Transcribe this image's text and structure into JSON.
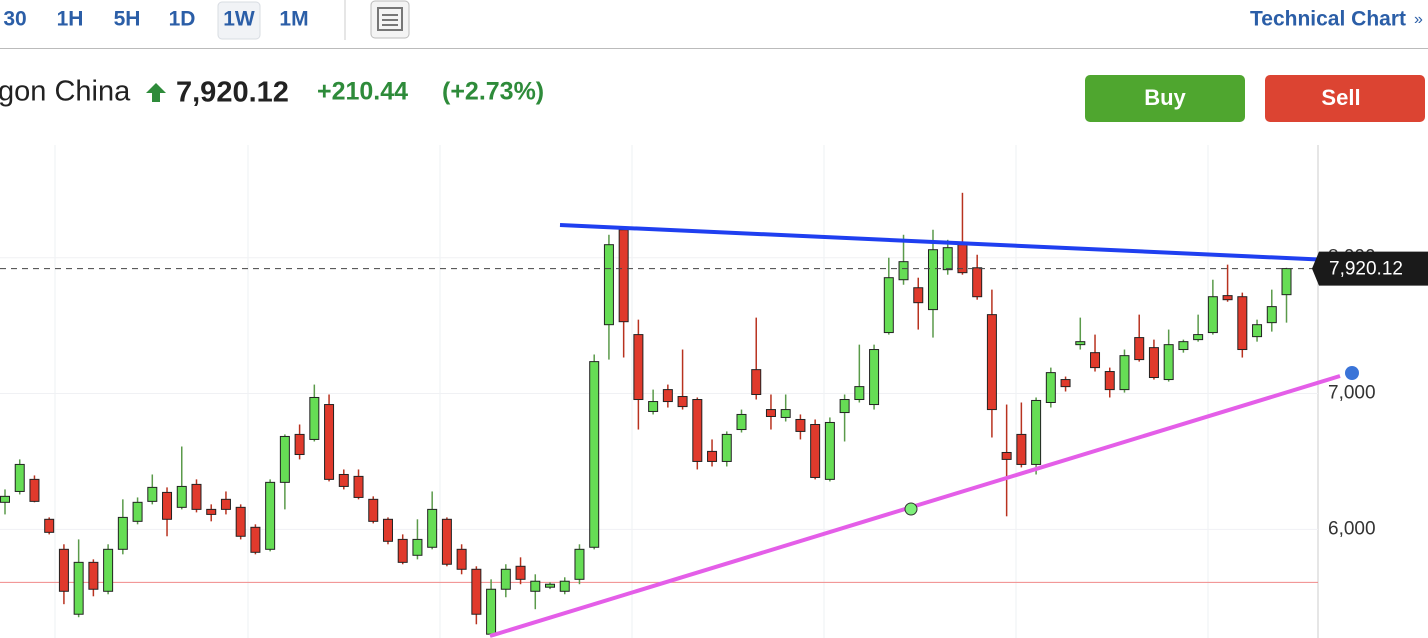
{
  "toolbar": {
    "timeframes": [
      "30",
      "1H",
      "5H",
      "1D",
      "1W",
      "1M"
    ],
    "link": "Technical Chart",
    "link_arrow": "»"
  },
  "header": {
    "instrument": "gon China",
    "price": "7,920.12",
    "change": "+210.44",
    "change_pct": "(+2.73%)"
  },
  "buttons": {
    "buy": "Buy",
    "sell": "Sell"
  },
  "chart_data": {
    "type": "candlestick",
    "ylim": [
      5200,
      8830
    ],
    "yticks": [
      {
        "value": 6000,
        "label": "6,000"
      },
      {
        "value": 7000,
        "label": "7,000"
      },
      {
        "value": 8000,
        "label": "8,000"
      }
    ],
    "grid": true,
    "up_color": "#66dd55",
    "down_color": "#e03a2c",
    "last_price": {
      "value": 7920.12,
      "label": "7,920.12"
    },
    "low_line": 5610,
    "open": [
      6199,
      6279,
      6368,
      6074,
      5853,
      5375,
      5757,
      5544,
      5853,
      6059,
      6206,
      6272,
      6162,
      6331,
      6147,
      6221,
      6162,
      6015,
      5853,
      6346,
      6699,
      6662,
      6919,
      6404,
      6390,
      6221,
      6074,
      5926,
      5809,
      5868,
      6074,
      5853,
      5706,
      5228,
      5559,
      5728,
      5544,
      5574,
      5544,
      5632,
      5868,
      7507,
      8206,
      7434,
      6868,
      7029,
      6978,
      6956,
      6574,
      6500,
      6735,
      7176,
      6882,
      6824,
      6809,
      6772,
      6368,
      6860,
      6956,
      6919,
      7449,
      7838,
      7779,
      7618,
      7912,
      8096,
      7926,
      7581,
      6566,
      6699,
      6478,
      6934,
      7103,
      7360,
      7301,
      7162,
      7029,
      7412,
      7338,
      7103,
      7324,
      7397,
      7449,
      7721,
      7713,
      7419,
      7522,
      7728
    ],
    "high": [
      6294,
      6515,
      6397,
      6088,
      5890,
      5926,
      5779,
      5890,
      6221,
      6235,
      6404,
      6309,
      6610,
      6368,
      6184,
      6279,
      6184,
      6037,
      6368,
      6699,
      6772,
      7066,
      6993,
      6441,
      6441,
      6243,
      6088,
      5963,
      6074,
      6279,
      6088,
      5890,
      5728,
      5632,
      5743,
      5794,
      5669,
      5610,
      5647,
      5890,
      7287,
      8169,
      8221,
      7544,
      7029,
      7066,
      7324,
      6971,
      6662,
      6721,
      6882,
      7559,
      6993,
      6993,
      6846,
      6809,
      6824,
      6993,
      7360,
      7360,
      8000,
      8169,
      7853,
      8206,
      8132,
      8478,
      8022,
      7765,
      6919,
      6934,
      6971,
      7191,
      7125,
      7559,
      7434,
      7191,
      7324,
      7581,
      7397,
      7471,
      7397,
      7581,
      7838,
      7949,
      7743,
      7544,
      7765,
      7926
    ],
    "low": [
      6110,
      6257,
      6199,
      5963,
      5449,
      5353,
      5507,
      5522,
      5816,
      6037,
      6184,
      5949,
      6147,
      6125,
      6059,
      6110,
      5926,
      5816,
      5838,
      6147,
      6515,
      6647,
      6353,
      6294,
      6221,
      6044,
      5890,
      5743,
      5779,
      5853,
      5728,
      5669,
      5301,
      5210,
      5500,
      5596,
      5412,
      5560,
      5522,
      5596,
      5853,
      7250,
      7265,
      6735,
      6846,
      6897,
      6882,
      6441,
      6463,
      6463,
      6713,
      6956,
      6735,
      6794,
      6662,
      6368,
      6353,
      6647,
      6934,
      6882,
      7434,
      7801,
      7471,
      7412,
      7875,
      7875,
      7691,
      6676,
      6096,
      6456,
      6404,
      6897,
      7015,
      7324,
      7162,
      6971,
      7007,
      7235,
      7103,
      7088,
      7301,
      7382,
      7434,
      7676,
      7265,
      7382,
      7456,
      7522
    ],
    "close": [
      6243,
      6478,
      6206,
      5978,
      5544,
      5757,
      5559,
      5853,
      6088,
      6199,
      6309,
      6074,
      6316,
      6147,
      6110,
      6147,
      5949,
      5831,
      6346,
      6684,
      6551,
      6971,
      6368,
      6316,
      6235,
      6059,
      5912,
      5757,
      5926,
      6147,
      5743,
      5706,
      5375,
      5559,
      5706,
      5632,
      5618,
      5596,
      5618,
      5853,
      7235,
      8096,
      7529,
      6956,
      6941,
      6941,
      6904,
      6500,
      6500,
      6699,
      6846,
      6993,
      6831,
      6882,
      6721,
      6382,
      6787,
      6956,
      7051,
      7324,
      7853,
      7971,
      7669,
      8059,
      8074,
      7890,
      7713,
      6882,
      6515,
      6478,
      6949,
      7154,
      7051,
      7382,
      7191,
      7029,
      7279,
      7250,
      7118,
      7360,
      7382,
      7434,
      7713,
      7691,
      7324,
      7507,
      7640,
      7920.12
    ]
  }
}
